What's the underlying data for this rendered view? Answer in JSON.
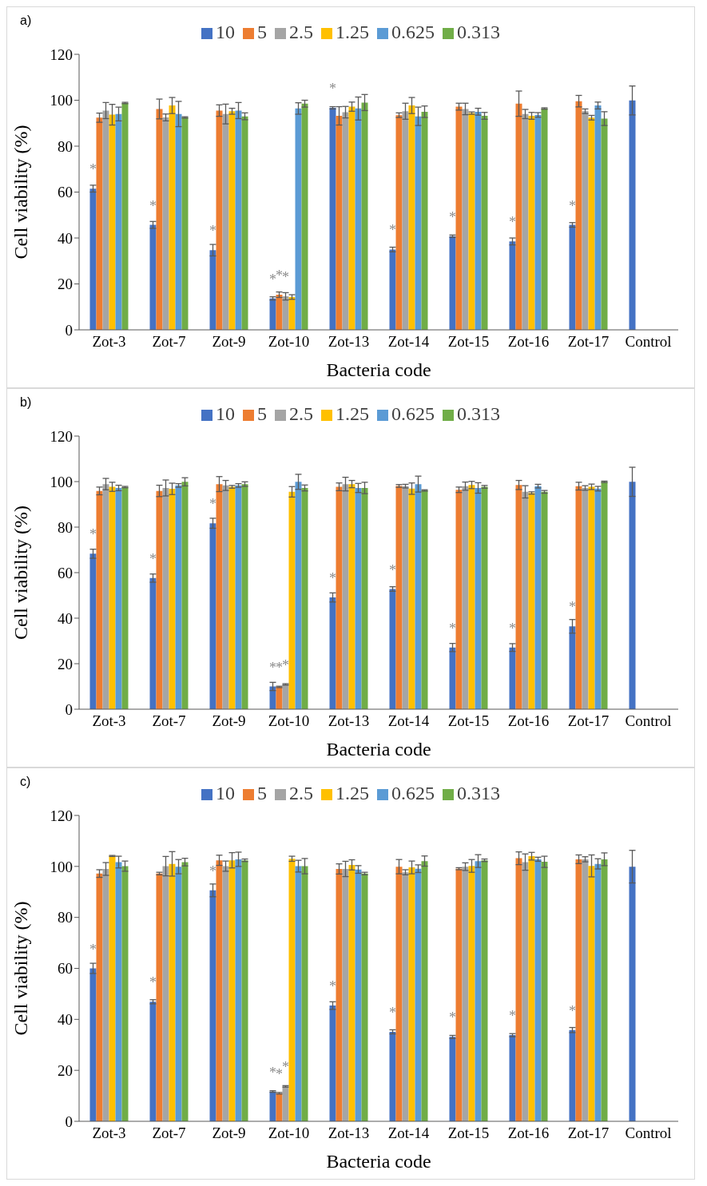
{
  "chart_data": [
    {
      "type": "bar",
      "title": "a)",
      "xlabel": "Bacteria code",
      "ylabel": "Cell viability (%)",
      "legend": "top",
      "grid": false,
      "ylim": [
        0,
        120
      ],
      "yticks": [
        0,
        20,
        40,
        60,
        80,
        100,
        120
      ],
      "categories": [
        "Zot-3",
        "Zot-7",
        "Zot-9",
        "Zot-10",
        "Zot-13",
        "Zot-14",
        "Zot-15",
        "Zot-16",
        "Zot-17",
        "Control"
      ],
      "series": [
        {
          "name": "10",
          "color": "#4472c4",
          "values": [
            61.5,
            45.7,
            34.7,
            13.7,
            96.7,
            35,
            40.8,
            38.5,
            45.7,
            99.9
          ],
          "errors": [
            1.5,
            1.5,
            2.5,
            0.7,
            0.5,
            1,
            0.5,
            1.5,
            1,
            6.3
          ],
          "value_labels": [
            "*",
            "*",
            "*",
            "*",
            "*",
            "*",
            "*",
            "*",
            "*",
            null
          ]
        },
        {
          "name": "5",
          "color": "#ed7d31",
          "values": [
            92.4,
            96.2,
            95.5,
            15.3,
            93.2,
            93.5,
            97.2,
            98.5,
            99.6,
            null
          ],
          "errors": [
            2,
            4.3,
            2.5,
            1.2,
            4,
            1,
            1.5,
            5.5,
            2.5,
            null
          ],
          "value_labels": [
            null,
            null,
            null,
            "*",
            null,
            null,
            null,
            null,
            null,
            null
          ]
        },
        {
          "name": "2.5",
          "color": "#a5a5a5",
          "values": [
            95.5,
            92.5,
            94,
            14.6,
            94.8,
            95.2,
            96.2,
            94,
            95.2,
            null
          ],
          "errors": [
            3.5,
            1.5,
            4.3,
            1.6,
            2.5,
            3.5,
            2.5,
            2,
            1,
            null
          ],
          "value_labels": [
            null,
            null,
            null,
            "*",
            null,
            null,
            null,
            null,
            null,
            null
          ]
        },
        {
          "name": "1.25",
          "color": "#ffc000",
          "values": [
            93.7,
            97.7,
            95.2,
            14.3,
            97.2,
            97.7,
            94.4,
            93.2,
            92.4,
            null
          ],
          "errors": [
            4.5,
            3.5,
            1.3,
            1,
            2,
            3.5,
            0.5,
            1.5,
            1,
            null
          ]
        },
        {
          "name": "0.625",
          "color": "#5b9bd5",
          "values": [
            94,
            94,
            95.5,
            96.4,
            96.4,
            93,
            95,
            93.6,
            97.7,
            null
          ],
          "errors": [
            3,
            5.5,
            3.5,
            2.5,
            5,
            4,
            1.5,
            1,
            1.5,
            null
          ]
        },
        {
          "name": "0.313",
          "color": "#70ad47",
          "values": [
            98.8,
            92.5,
            93,
            98.5,
            99,
            95,
            93.2,
            96.4,
            92,
            null
          ],
          "errors": [
            0.3,
            0.3,
            1.5,
            1.5,
            3.5,
            2.5,
            1.5,
            0.3,
            3,
            null
          ]
        }
      ]
    },
    {
      "type": "bar",
      "title": "b)",
      "xlabel": "Bacteria code",
      "ylabel": "Cell viability (%)",
      "legend": "top",
      "grid": false,
      "ylim": [
        0,
        120
      ],
      "yticks": [
        0,
        20,
        40,
        60,
        80,
        100,
        120
      ],
      "categories": [
        "Zot-3",
        "Zot-7",
        "Zot-9",
        "Zot-10",
        "Zot-13",
        "Zot-14",
        "Zot-15",
        "Zot-16",
        "Zot-17",
        "Control"
      ],
      "series": [
        {
          "name": "10",
          "color": "#4472c4",
          "values": [
            68.3,
            57.6,
            81.7,
            10,
            49.1,
            52.8,
            27.1,
            27.1,
            36.4,
            99.9
          ],
          "errors": [
            2,
            1.8,
            2.2,
            1.8,
            2,
            1,
            1.8,
            1.7,
            3,
            6.4
          ],
          "value_labels": [
            "*",
            "*",
            "*",
            "*",
            "*",
            "*",
            "*",
            "*",
            "*",
            null
          ]
        },
        {
          "name": "5",
          "color": "#ed7d31",
          "values": [
            95.9,
            95.9,
            98.9,
            9.8,
            97.7,
            98.1,
            96.4,
            98.5,
            98,
            null
          ],
          "errors": [
            1.7,
            2.5,
            3.3,
            0.3,
            1.7,
            0.6,
            1.2,
            2,
            1.7,
            null
          ],
          "value_labels": [
            null,
            null,
            null,
            "*",
            null,
            null,
            null,
            null,
            null,
            null
          ]
        },
        {
          "name": "2.5",
          "color": "#a5a5a5",
          "values": [
            98.9,
            97.2,
            98.3,
            10.9,
            98.9,
            98,
            98,
            95.5,
            97.2,
            null
          ],
          "errors": [
            2.5,
            3.5,
            2.2,
            0.3,
            3,
            0.8,
            1.8,
            2.7,
            1,
            null
          ],
          "value_labels": [
            null,
            null,
            null,
            "*",
            null,
            null,
            null,
            null,
            null,
            null
          ]
        },
        {
          "name": "1.25",
          "color": "#ffc000",
          "values": [
            97.7,
            96.8,
            97.7,
            95.5,
            98.9,
            96.9,
            98.5,
            95,
            97.7,
            null
          ],
          "errors": [
            2,
            2.5,
            0.6,
            2.3,
            1.6,
            2.5,
            1.6,
            0.5,
            1.2,
            null
          ]
        },
        {
          "name": "0.625",
          "color": "#5b9bd5",
          "values": [
            97.2,
            98.3,
            98.3,
            99.9,
            97.2,
            98.9,
            97.2,
            98,
            96.9,
            null
          ],
          "errors": [
            1.2,
            0.8,
            0.8,
            3.3,
            2,
            3.5,
            2.3,
            0.8,
            1,
            null
          ]
        },
        {
          "name": "0.313",
          "color": "#70ad47",
          "values": [
            97.6,
            99.9,
            98.9,
            97.2,
            97.2,
            96.1,
            97.7,
            95.5,
            99.9,
            null
          ],
          "errors": [
            0.3,
            1.8,
            1,
            1.3,
            2.5,
            0.3,
            0.6,
            0.6,
            0.3,
            null
          ]
        }
      ]
    },
    {
      "type": "bar",
      "title": "c)",
      "xlabel": "Bacteria code",
      "ylabel": "Cell viability (%)",
      "legend": "top",
      "grid": false,
      "ylim": [
        0,
        120
      ],
      "yticks": [
        0,
        20,
        40,
        60,
        80,
        100,
        120
      ],
      "categories": [
        "Zot-3",
        "Zot-7",
        "Zot-9",
        "Zot-10",
        "Zot-13",
        "Zot-14",
        "Zot-15",
        "Zot-16",
        "Zot-17",
        "Control"
      ],
      "series": [
        {
          "name": "10",
          "color": "#4472c4",
          "values": [
            60,
            46.9,
            90.6,
            11.7,
            45.4,
            35.1,
            33.1,
            33.8,
            35.8,
            99.9
          ],
          "errors": [
            2,
            0.8,
            2.5,
            0.3,
            1.5,
            0.8,
            0.6,
            0.6,
            1,
            6.4
          ],
          "value_labels": [
            "*",
            "*",
            "*",
            "*",
            "*",
            "*",
            "*",
            "*",
            "*",
            null
          ]
        },
        {
          "name": "5",
          "color": "#ed7d31",
          "values": [
            97.2,
            97.2,
            102.4,
            11,
            99,
            99.9,
            99.1,
            103.2,
            102.8,
            null
          ],
          "errors": [
            1.5,
            0.5,
            2,
            0.3,
            2,
            2.8,
            0.4,
            2.5,
            1.7,
            null
          ],
          "value_labels": [
            null,
            null,
            null,
            "*",
            null,
            null,
            null,
            null,
            null,
            null
          ]
        },
        {
          "name": "2.5",
          "color": "#a5a5a5",
          "values": [
            99,
            100.1,
            100.1,
            13.7,
            99,
            97.7,
            99.9,
            101.7,
            102.8,
            null
          ],
          "errors": [
            2.5,
            3.8,
            2,
            0.3,
            3,
            1,
            1.5,
            3.2,
            1,
            null
          ],
          "value_labels": [
            null,
            null,
            null,
            "*",
            null,
            null,
            null,
            null,
            null,
            null
          ]
        },
        {
          "name": "1.25",
          "color": "#ffc000",
          "values": [
            104.1,
            101,
            102.4,
            103,
            100.6,
            99.6,
            100.2,
            104,
            100.2,
            null
          ],
          "errors": [
            0.2,
            4.8,
            3,
            1,
            2,
            2.5,
            2.5,
            1.5,
            4.3,
            null
          ]
        },
        {
          "name": "0.625",
          "color": "#5b9bd5",
          "values": [
            101.7,
            99.9,
            102.8,
            100.1,
            98.8,
            99.1,
            102.1,
            102.8,
            101,
            null
          ],
          "errors": [
            2.3,
            2.8,
            2.8,
            2.3,
            1.5,
            1.5,
            2.5,
            0.8,
            2,
            null
          ]
        },
        {
          "name": "0.313",
          "color": "#70ad47",
          "values": [
            100.1,
            101.7,
            102.4,
            100.1,
            97.2,
            102.1,
            102.4,
            101.8,
            102.8,
            null
          ],
          "errors": [
            2,
            1.5,
            0.5,
            3,
            0.5,
            2,
            0.5,
            2.2,
            2.5,
            null
          ]
        }
      ]
    }
  ]
}
